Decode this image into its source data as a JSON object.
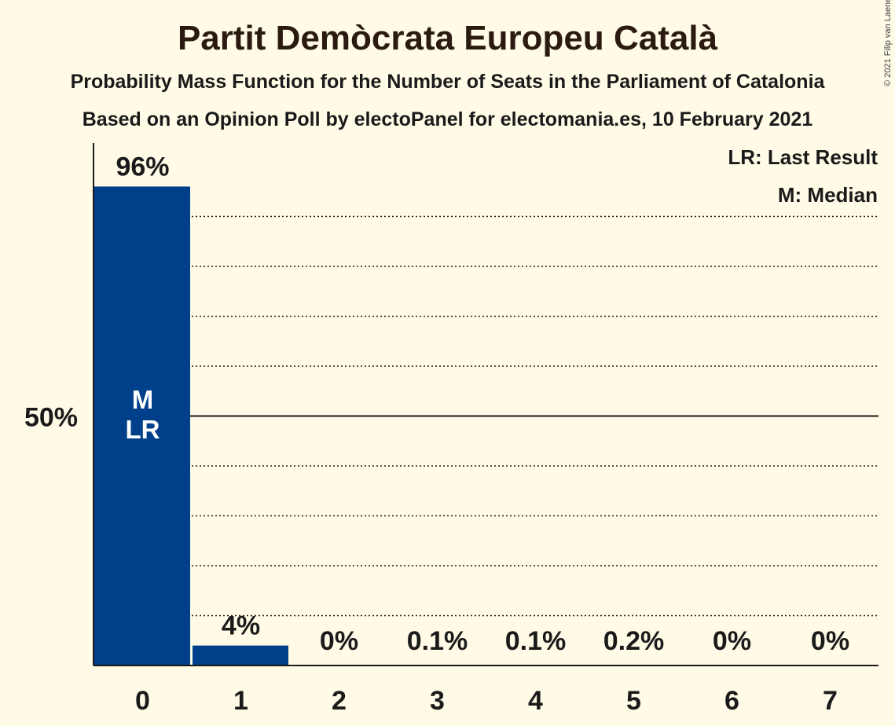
{
  "title": "Partit Demòcrata Europeu Català",
  "subtitle": "Probability Mass Function for the Number of Seats in the Parliament of Catalonia",
  "subtitle2": "Based on an Opinion Poll by electoPanel for electomania.es, 10 February 2021",
  "copyright": "© 2021 Filip van Laenen",
  "legend": {
    "last_result": "LR: Last Result",
    "median": "M: Median"
  },
  "colors": {
    "bar": "#003f8a",
    "background": "#fffbe6",
    "text": "#1a1a1a"
  },
  "chart_data": {
    "type": "bar",
    "categories": [
      "0",
      "1",
      "2",
      "3",
      "4",
      "5",
      "6",
      "7"
    ],
    "values": [
      96,
      4,
      0,
      0.1,
      0.1,
      0.2,
      0,
      0
    ],
    "value_labels": [
      "96%",
      "4%",
      "0%",
      "0.1%",
      "0.1%",
      "0.2%",
      "0%",
      "0%"
    ],
    "ylim": [
      0,
      100
    ],
    "ytick_label": "50%",
    "ytick_value": 50,
    "gridlines": [
      10,
      20,
      30,
      40,
      60,
      70,
      80,
      90
    ],
    "bar_annotations": {
      "category": "0",
      "lines": [
        "M",
        "LR"
      ]
    },
    "grid": true,
    "legend_position": "top-right"
  }
}
